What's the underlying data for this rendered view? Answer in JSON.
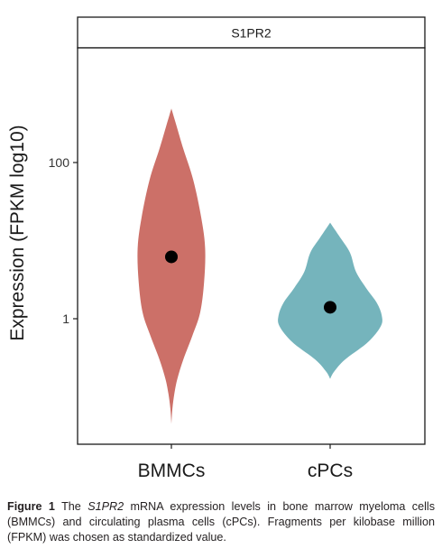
{
  "chart_data": {
    "type": "violin",
    "panel_label": "S1PR2",
    "ylabel": "Expression (FPKM log10)",
    "y_scale": "log10",
    "ylim": [
      0.035,
      1000
    ],
    "y_ticks": [
      {
        "value": 1,
        "label": "1"
      },
      {
        "value": 100,
        "label": "100"
      }
    ],
    "categories": [
      "BMMCs",
      "cPCs"
    ],
    "series": [
      {
        "category": "BMMCs",
        "color": "#cc7068",
        "median": 6.2,
        "range": [
          0.045,
          490
        ],
        "density_profile": [
          {
            "value": 0.045,
            "half_width": 0.0
          },
          {
            "value": 0.07,
            "half_width": 0.01
          },
          {
            "value": 0.11,
            "half_width": 0.03
          },
          {
            "value": 0.17,
            "half_width": 0.06
          },
          {
            "value": 0.3,
            "half_width": 0.12
          },
          {
            "value": 0.6,
            "half_width": 0.21
          },
          {
            "value": 1.2,
            "half_width": 0.29
          },
          {
            "value": 3,
            "half_width": 0.33
          },
          {
            "value": 8,
            "half_width": 0.34
          },
          {
            "value": 20,
            "half_width": 0.3
          },
          {
            "value": 60,
            "half_width": 0.22
          },
          {
            "value": 150,
            "half_width": 0.12
          },
          {
            "value": 300,
            "half_width": 0.05
          },
          {
            "value": 490,
            "half_width": 0.0
          }
        ]
      },
      {
        "category": "cPCs",
        "color": "#75b4bc",
        "median": 1.4,
        "range": [
          0.17,
          17
        ],
        "density_profile": [
          {
            "value": 0.17,
            "half_width": 0.0
          },
          {
            "value": 0.21,
            "half_width": 0.04
          },
          {
            "value": 0.3,
            "half_width": 0.15
          },
          {
            "value": 0.5,
            "half_width": 0.38
          },
          {
            "value": 0.8,
            "half_width": 0.51
          },
          {
            "value": 1.1,
            "half_width": 0.52
          },
          {
            "value": 1.6,
            "half_width": 0.47
          },
          {
            "value": 2.5,
            "half_width": 0.36
          },
          {
            "value": 4,
            "half_width": 0.26
          },
          {
            "value": 7,
            "half_width": 0.2
          },
          {
            "value": 11,
            "half_width": 0.1
          },
          {
            "value": 17,
            "half_width": 0.0
          }
        ]
      }
    ]
  },
  "caption": {
    "label": "Figure 1",
    "text_before": " The ",
    "gene": "S1PR2",
    "text_after": " mRNA expression levels in bone marrow myeloma cells (BMMCs) and circulating plasma cells (cPCs). Fragments per kilobase million (FPKM) was chosen as standardized value."
  }
}
